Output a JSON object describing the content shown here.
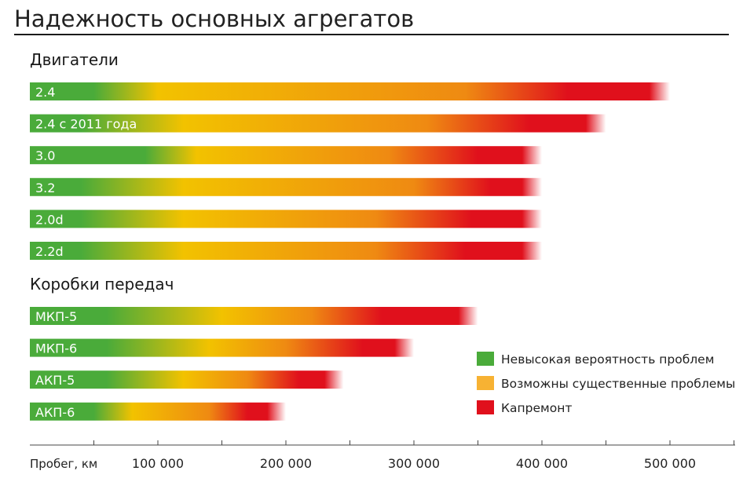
{
  "chart_data": {
    "type": "bar",
    "title": "Надежность основных агрегатов",
    "xlabel": "Пробег, км",
    "xlim": [
      0,
      550000
    ],
    "xticks": [
      {
        "value": 100000,
        "label": "100 000"
      },
      {
        "value": 200000,
        "label": "200 000"
      },
      {
        "value": 300000,
        "label": "300 000"
      },
      {
        "value": 400000,
        "label": "400 000"
      },
      {
        "value": 500000,
        "label": "500 000"
      }
    ],
    "xminor": [
      50000,
      150000,
      250000,
      350000,
      450000,
      550000
    ],
    "colors": {
      "green": "#4aab3a",
      "yellow": "#f2c200",
      "orange": "#ef8a12",
      "red": "#e0101c"
    },
    "groups": [
      {
        "name": "Двигатели",
        "bars": [
          {
            "label": "2.4",
            "end": 500000,
            "green_to": 50000,
            "yellow_from": 100000,
            "orange_from": 340000,
            "red_from": 420000
          },
          {
            "label": "2.4 с 2011 года",
            "end": 450000,
            "green_to": 40000,
            "yellow_from": 120000,
            "orange_from": 310000,
            "red_from": 390000
          },
          {
            "label": "3.0",
            "end": 400000,
            "green_to": 90000,
            "yellow_from": 130000,
            "orange_from": 280000,
            "red_from": 350000
          },
          {
            "label": "3.2",
            "end": 400000,
            "green_to": 40000,
            "yellow_from": 120000,
            "orange_from": 300000,
            "red_from": 360000
          },
          {
            "label": "2.0d",
            "end": 400000,
            "green_to": 40000,
            "yellow_from": 120000,
            "orange_from": 270000,
            "red_from": 345000
          },
          {
            "label": "2.2d",
            "end": 400000,
            "green_to": 40000,
            "yellow_from": 120000,
            "orange_from": 270000,
            "red_from": 340000
          }
        ]
      },
      {
        "name": "Коробки передач",
        "bars": [
          {
            "label": "МКП-5",
            "end": 350000,
            "green_to": 60000,
            "yellow_from": 150000,
            "orange_from": 220000,
            "red_from": 275000
          },
          {
            "label": "МКП-6",
            "end": 300000,
            "green_to": 60000,
            "yellow_from": 140000,
            "orange_from": 200000,
            "red_from": 260000
          },
          {
            "label": "АКП-5",
            "end": 245000,
            "green_to": 60000,
            "yellow_from": 120000,
            "orange_from": 170000,
            "red_from": 210000
          },
          {
            "label": "АКП-6",
            "end": 200000,
            "green_to": 50000,
            "yellow_from": 80000,
            "orange_from": 140000,
            "red_from": 170000
          }
        ]
      }
    ],
    "legend": {
      "placement": "right",
      "items": [
        {
          "label": "Невысокая вероятность проблем",
          "color": "#4aab3a"
        },
        {
          "label": "Возможны существенные проблемы",
          "color": "#f7b233"
        },
        {
          "label": "Капремонт",
          "color": "#e0101c"
        }
      ]
    }
  }
}
